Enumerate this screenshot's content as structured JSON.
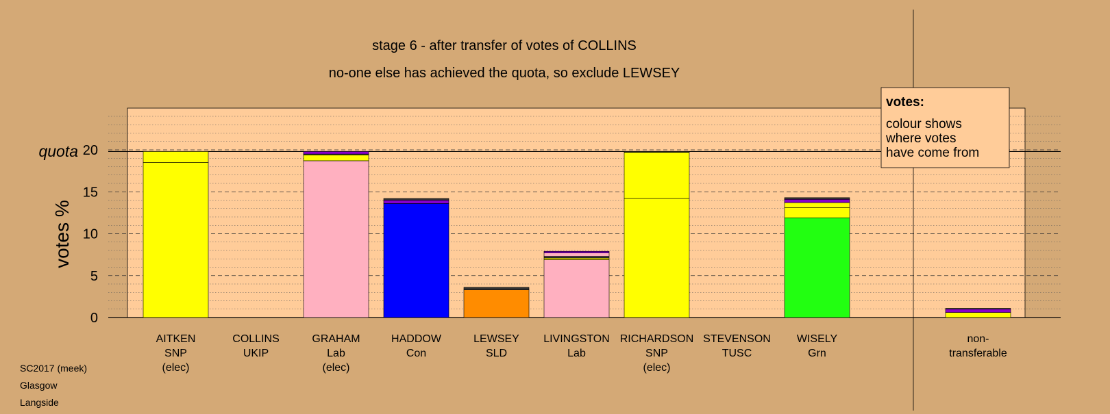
{
  "title_line1": "stage 6 - after transfer of votes of COLLINS",
  "title_line2": "no-one else has achieved the quota, so exclude LEWSEY",
  "quota_label": "quota",
  "legend": {
    "heading": "votes:",
    "lines": [
      "colour shows",
      "where votes",
      "have come from"
    ]
  },
  "footer": [
    "SC2017 (meek)",
    "Glasgow",
    "Langside"
  ],
  "colors": {
    "background": "#d4a976",
    "plot_background": "#ffcc99",
    "SNP": "#ffff00",
    "Lab": "#ffb0c0",
    "Con": "#0000ff",
    "SLD": "#ff8c00",
    "Grn": "#22ff11",
    "UKIP": "#8800cc",
    "dark": "#333333"
  },
  "chart_data": {
    "type": "bar",
    "stacked": true,
    "ylabel": "votes %",
    "ylim": [
      0,
      25
    ],
    "yticks": [
      0,
      5,
      10,
      15,
      20
    ],
    "quota": 19.8,
    "grid": true,
    "legend_position": "top-right",
    "candidates": [
      {
        "name": "AITKEN",
        "party": "SNP",
        "status": "(elec)",
        "segments": [
          {
            "from": "SNP",
            "value": 18.5
          },
          {
            "from": "SNP",
            "value": 1.3
          }
        ]
      },
      {
        "name": "COLLINS",
        "party": "UKIP",
        "status": "",
        "segments": []
      },
      {
        "name": "GRAHAM",
        "party": "Lab",
        "status": "(elec)",
        "segments": [
          {
            "from": "Lab",
            "value": 18.7
          },
          {
            "from": "SNP",
            "value": 0.7
          },
          {
            "from": "dark",
            "value": 0.1
          },
          {
            "from": "UKIP",
            "value": 0.3
          }
        ]
      },
      {
        "name": "HADDOW",
        "party": "Con",
        "status": "",
        "segments": [
          {
            "from": "Con",
            "value": 13.6
          },
          {
            "from": "UKIP",
            "value": 0.4
          },
          {
            "from": "dark",
            "value": 0.2
          }
        ]
      },
      {
        "name": "LEWSEY",
        "party": "SLD",
        "status": "",
        "segments": [
          {
            "from": "SLD",
            "value": 3.3
          },
          {
            "from": "dark",
            "value": 0.3
          }
        ]
      },
      {
        "name": "LIVINGSTON",
        "party": "Lab",
        "status": "",
        "segments": [
          {
            "from": "Lab",
            "value": 6.9
          },
          {
            "from": "SNP",
            "value": 0.2
          },
          {
            "from": "dark",
            "value": 0.2
          },
          {
            "from": "Lab",
            "value": 0.4
          },
          {
            "from": "UKIP",
            "value": 0.2
          }
        ]
      },
      {
        "name": "RICHARDSON",
        "party": "SNP",
        "status": "(elec)",
        "segments": [
          {
            "from": "SNP",
            "value": 14.2
          },
          {
            "from": "SNP",
            "value": 5.5
          },
          {
            "from": "dark",
            "value": 0.1
          }
        ]
      },
      {
        "name": "STEVENSON",
        "party": "TUSC",
        "status": "",
        "segments": []
      },
      {
        "name": "WISELY",
        "party": "Grn",
        "status": "",
        "segments": [
          {
            "from": "Grn",
            "value": 11.9
          },
          {
            "from": "SNP",
            "value": 1.2
          },
          {
            "from": "SNP",
            "value": 0.6
          },
          {
            "from": "UKIP",
            "value": 0.4
          },
          {
            "from": "dark",
            "value": 0.2
          }
        ]
      }
    ],
    "nontransferable": {
      "label_line1": "non-",
      "label_line2": "transferable",
      "segments": [
        {
          "from": "SNP",
          "value": 0.6
        },
        {
          "from": "UKIP",
          "value": 0.4
        },
        {
          "from": "dark",
          "value": 0.1
        }
      ]
    }
  }
}
